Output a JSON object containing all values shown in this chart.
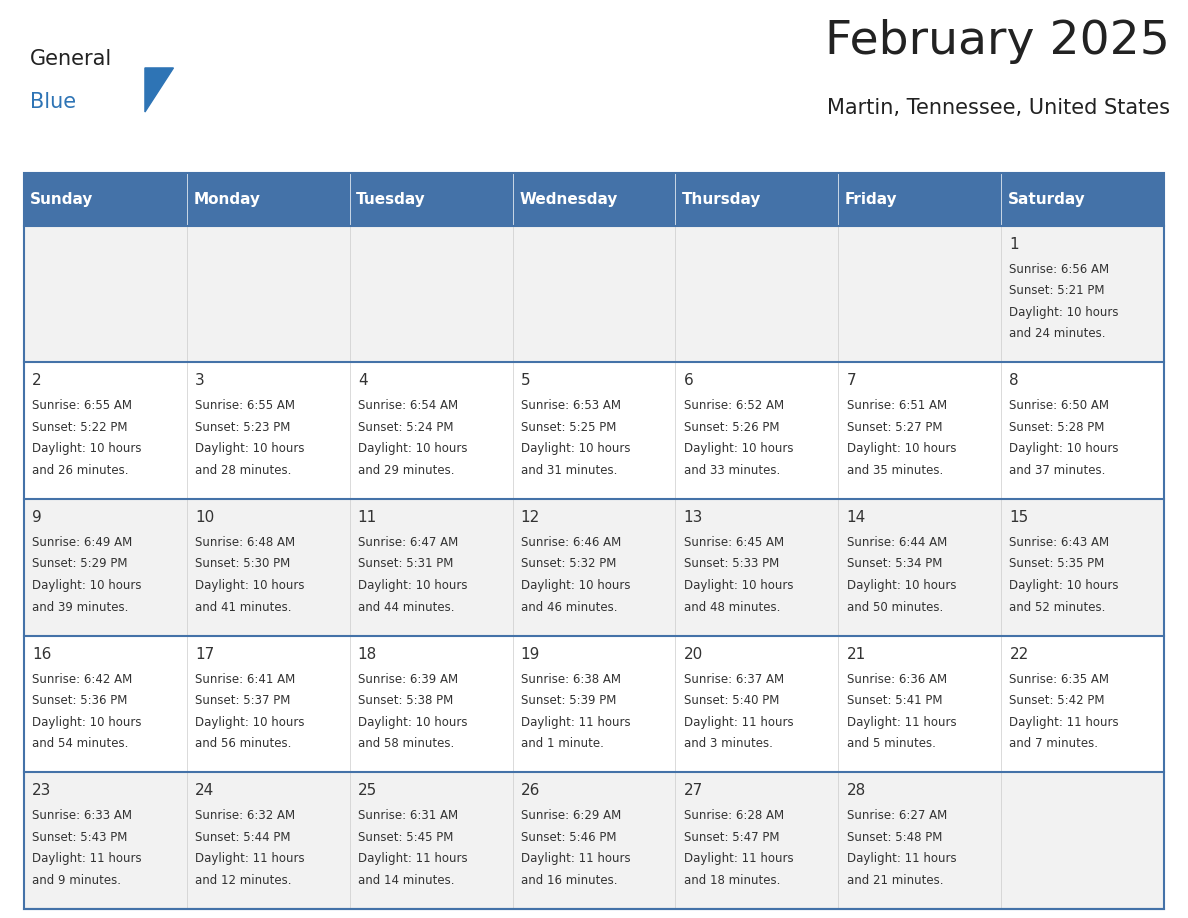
{
  "title": "February 2025",
  "subtitle": "Martin, Tennessee, United States",
  "days_of_week": [
    "Sunday",
    "Monday",
    "Tuesday",
    "Wednesday",
    "Thursday",
    "Friday",
    "Saturday"
  ],
  "header_bg": "#4472a8",
  "header_text": "#ffffff",
  "cell_bg_even": "#f2f2f2",
  "cell_bg_odd": "#ffffff",
  "row_separator": "#4472a8",
  "text_color": "#333333",
  "title_color": "#222222",
  "logo_blue": "#2e74b5",
  "logo_dark": "#222222",
  "calendar": [
    [
      null,
      null,
      null,
      null,
      null,
      null,
      1
    ],
    [
      2,
      3,
      4,
      5,
      6,
      7,
      8
    ],
    [
      9,
      10,
      11,
      12,
      13,
      14,
      15
    ],
    [
      16,
      17,
      18,
      19,
      20,
      21,
      22
    ],
    [
      23,
      24,
      25,
      26,
      27,
      28,
      null
    ]
  ],
  "cell_data": {
    "1": {
      "sunrise": "6:56 AM",
      "sunset": "5:21 PM",
      "daylight_l1": "Daylight: 10 hours",
      "daylight_l2": "and 24 minutes."
    },
    "2": {
      "sunrise": "6:55 AM",
      "sunset": "5:22 PM",
      "daylight_l1": "Daylight: 10 hours",
      "daylight_l2": "and 26 minutes."
    },
    "3": {
      "sunrise": "6:55 AM",
      "sunset": "5:23 PM",
      "daylight_l1": "Daylight: 10 hours",
      "daylight_l2": "and 28 minutes."
    },
    "4": {
      "sunrise": "6:54 AM",
      "sunset": "5:24 PM",
      "daylight_l1": "Daylight: 10 hours",
      "daylight_l2": "and 29 minutes."
    },
    "5": {
      "sunrise": "6:53 AM",
      "sunset": "5:25 PM",
      "daylight_l1": "Daylight: 10 hours",
      "daylight_l2": "and 31 minutes."
    },
    "6": {
      "sunrise": "6:52 AM",
      "sunset": "5:26 PM",
      "daylight_l1": "Daylight: 10 hours",
      "daylight_l2": "and 33 minutes."
    },
    "7": {
      "sunrise": "6:51 AM",
      "sunset": "5:27 PM",
      "daylight_l1": "Daylight: 10 hours",
      "daylight_l2": "and 35 minutes."
    },
    "8": {
      "sunrise": "6:50 AM",
      "sunset": "5:28 PM",
      "daylight_l1": "Daylight: 10 hours",
      "daylight_l2": "and 37 minutes."
    },
    "9": {
      "sunrise": "6:49 AM",
      "sunset": "5:29 PM",
      "daylight_l1": "Daylight: 10 hours",
      "daylight_l2": "and 39 minutes."
    },
    "10": {
      "sunrise": "6:48 AM",
      "sunset": "5:30 PM",
      "daylight_l1": "Daylight: 10 hours",
      "daylight_l2": "and 41 minutes."
    },
    "11": {
      "sunrise": "6:47 AM",
      "sunset": "5:31 PM",
      "daylight_l1": "Daylight: 10 hours",
      "daylight_l2": "and 44 minutes."
    },
    "12": {
      "sunrise": "6:46 AM",
      "sunset": "5:32 PM",
      "daylight_l1": "Daylight: 10 hours",
      "daylight_l2": "and 46 minutes."
    },
    "13": {
      "sunrise": "6:45 AM",
      "sunset": "5:33 PM",
      "daylight_l1": "Daylight: 10 hours",
      "daylight_l2": "and 48 minutes."
    },
    "14": {
      "sunrise": "6:44 AM",
      "sunset": "5:34 PM",
      "daylight_l1": "Daylight: 10 hours",
      "daylight_l2": "and 50 minutes."
    },
    "15": {
      "sunrise": "6:43 AM",
      "sunset": "5:35 PM",
      "daylight_l1": "Daylight: 10 hours",
      "daylight_l2": "and 52 minutes."
    },
    "16": {
      "sunrise": "6:42 AM",
      "sunset": "5:36 PM",
      "daylight_l1": "Daylight: 10 hours",
      "daylight_l2": "and 54 minutes."
    },
    "17": {
      "sunrise": "6:41 AM",
      "sunset": "5:37 PM",
      "daylight_l1": "Daylight: 10 hours",
      "daylight_l2": "and 56 minutes."
    },
    "18": {
      "sunrise": "6:39 AM",
      "sunset": "5:38 PM",
      "daylight_l1": "Daylight: 10 hours",
      "daylight_l2": "and 58 minutes."
    },
    "19": {
      "sunrise": "6:38 AM",
      "sunset": "5:39 PM",
      "daylight_l1": "Daylight: 11 hours",
      "daylight_l2": "and 1 minute."
    },
    "20": {
      "sunrise": "6:37 AM",
      "sunset": "5:40 PM",
      "daylight_l1": "Daylight: 11 hours",
      "daylight_l2": "and 3 minutes."
    },
    "21": {
      "sunrise": "6:36 AM",
      "sunset": "5:41 PM",
      "daylight_l1": "Daylight: 11 hours",
      "daylight_l2": "and 5 minutes."
    },
    "22": {
      "sunrise": "6:35 AM",
      "sunset": "5:42 PM",
      "daylight_l1": "Daylight: 11 hours",
      "daylight_l2": "and 7 minutes."
    },
    "23": {
      "sunrise": "6:33 AM",
      "sunset": "5:43 PM",
      "daylight_l1": "Daylight: 11 hours",
      "daylight_l2": "and 9 minutes."
    },
    "24": {
      "sunrise": "6:32 AM",
      "sunset": "5:44 PM",
      "daylight_l1": "Daylight: 11 hours",
      "daylight_l2": "and 12 minutes."
    },
    "25": {
      "sunrise": "6:31 AM",
      "sunset": "5:45 PM",
      "daylight_l1": "Daylight: 11 hours",
      "daylight_l2": "and 14 minutes."
    },
    "26": {
      "sunrise": "6:29 AM",
      "sunset": "5:46 PM",
      "daylight_l1": "Daylight: 11 hours",
      "daylight_l2": "and 16 minutes."
    },
    "27": {
      "sunrise": "6:28 AM",
      "sunset": "5:47 PM",
      "daylight_l1": "Daylight: 11 hours",
      "daylight_l2": "and 18 minutes."
    },
    "28": {
      "sunrise": "6:27 AM",
      "sunset": "5:48 PM",
      "daylight_l1": "Daylight: 11 hours",
      "daylight_l2": "and 21 minutes."
    }
  }
}
